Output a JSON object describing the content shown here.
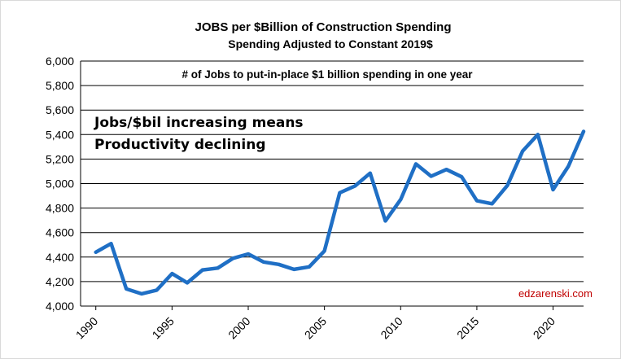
{
  "chart_data": {
    "type": "line",
    "title": "JOBS per $Billion of Construction Spending",
    "subtitle": "Spending Adjusted to Constant 2019$",
    "xlabel": "",
    "ylabel": "",
    "ylim": [
      4000,
      6000
    ],
    "xlim": [
      1990,
      2022
    ],
    "grid": true,
    "yticks": [
      4000,
      4200,
      4400,
      4600,
      4800,
      5000,
      5200,
      5400,
      5600,
      5800,
      6000
    ],
    "ytick_labels": [
      "4,000",
      "4,200",
      "4,400",
      "4,600",
      "4,800",
      "5,000",
      "5,200",
      "5,400",
      "5,600",
      "5,800",
      "6,000"
    ],
    "xticks": [
      1990,
      1995,
      2000,
      2005,
      2010,
      2015,
      2020
    ],
    "xtick_labels": [
      "1990",
      "1995",
      "2000",
      "2005",
      "2010",
      "2015",
      "2020"
    ],
    "annotations": [
      "# of Jobs to put-in-place  $1 billion spending in one year",
      "Jobs/$bil increasing means",
      "Productivity declining"
    ],
    "credit": "edzarenski.com",
    "series": [
      {
        "color": "#1f6fc5",
        "x": [
          1990,
          1991,
          1992,
          1993,
          1994,
          1995,
          1996,
          1997,
          1998,
          1999,
          2000,
          2001,
          2002,
          2003,
          2004,
          2005,
          2006,
          2007,
          2008,
          2009,
          2010,
          2011,
          2012,
          2013,
          2014,
          2015,
          2016,
          2017,
          2018,
          2019,
          2020,
          2021,
          2022
        ],
        "values": [
          4440,
          4510,
          4140,
          4100,
          4130,
          4265,
          4190,
          4295,
          4310,
          4390,
          4425,
          4360,
          4340,
          4300,
          4320,
          4450,
          4925,
          4980,
          5085,
          4695,
          4870,
          5160,
          5060,
          5115,
          5055,
          4860,
          4835,
          4985,
          5265,
          5400,
          4950,
          5140,
          5425
        ]
      }
    ]
  }
}
